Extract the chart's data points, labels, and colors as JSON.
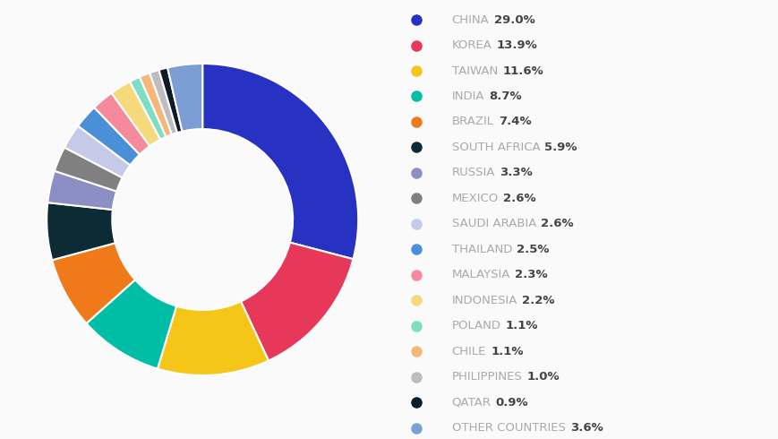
{
  "labels": [
    "CHINA",
    "KOREA",
    "TAIWAN",
    "INDIA",
    "BRAZIL",
    "SOUTH AFRICA",
    "RUSSIA",
    "MEXICO",
    "SAUDI ARABIA",
    "THAILAND",
    "MALAYSIA",
    "INDONESIA",
    "POLAND",
    "CHILE",
    "PHILIPPINES",
    "QATAR",
    "OTHER COUNTRIES"
  ],
  "values": [
    29.0,
    13.9,
    11.6,
    8.7,
    7.4,
    5.9,
    3.3,
    2.6,
    2.6,
    2.5,
    2.3,
    2.2,
    1.1,
    1.1,
    1.0,
    0.9,
    3.6
  ],
  "colors": [
    "#2832C2",
    "#E8385A",
    "#F5C518",
    "#00BDA5",
    "#F07A1A",
    "#0D2B35",
    "#8B8FC4",
    "#808080",
    "#C5CAE9",
    "#4A90D9",
    "#F48A9B",
    "#F5D97A",
    "#7EDEC4",
    "#F5B87A",
    "#BDBDBD",
    "#0D1B2A",
    "#7B9FD4"
  ],
  "background_color": "#FAFAFA",
  "legend_label_color": "#AAAAAA",
  "legend_value_color": "#444444",
  "legend_fontsize": 9.5,
  "donut_width": 0.42,
  "wedge_edge_color": "white",
  "wedge_linewidth": 1.5
}
